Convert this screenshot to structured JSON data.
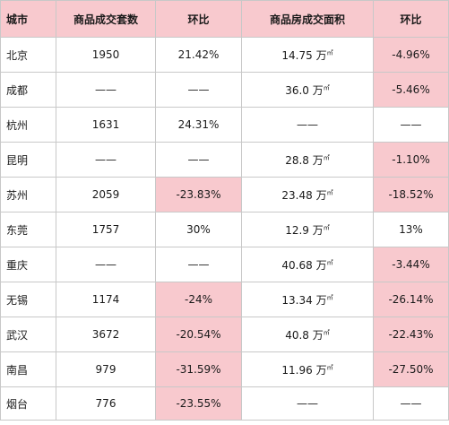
{
  "table": {
    "headers": [
      "城市",
      "商品成交套数",
      "环比",
      "商品房成交面积",
      "环比"
    ],
    "area_unit": "万㎡",
    "rows": [
      {
        "city": "北京",
        "units": "1950",
        "units_mom": "21.42%",
        "area": "14.75",
        "area_mom": "-4.96%",
        "units_mom_highlight": false,
        "area_mom_highlight": true
      },
      {
        "city": "成都",
        "units": "——",
        "units_mom": "——",
        "area": "36.0",
        "area_mom": "-5.46%",
        "units_mom_highlight": false,
        "area_mom_highlight": true
      },
      {
        "city": "杭州",
        "units": "1631",
        "units_mom": "24.31%",
        "area": "——",
        "area_mom": "——",
        "units_mom_highlight": false,
        "area_mom_highlight": false
      },
      {
        "city": "昆明",
        "units": "——",
        "units_mom": "——",
        "area": "28.8",
        "area_mom": "-1.10%",
        "units_mom_highlight": false,
        "area_mom_highlight": true
      },
      {
        "city": "苏州",
        "units": "2059",
        "units_mom": "-23.83%",
        "area": "23.48",
        "area_mom": "-18.52%",
        "units_mom_highlight": true,
        "area_mom_highlight": true
      },
      {
        "city": "东莞",
        "units": "1757",
        "units_mom": "30%",
        "area": "12.9",
        "area_mom": "13%",
        "units_mom_highlight": false,
        "area_mom_highlight": false
      },
      {
        "city": "重庆",
        "units": "——",
        "units_mom": "——",
        "area": "40.68",
        "area_mom": "-3.44%",
        "units_mom_highlight": false,
        "area_mom_highlight": true
      },
      {
        "city": "无锡",
        "units": "1174",
        "units_mom": "-24%",
        "area": "13.34",
        "area_mom": "-26.14%",
        "units_mom_highlight": true,
        "area_mom_highlight": true
      },
      {
        "city": "武汉",
        "units": "3672",
        "units_mom": "-20.54%",
        "area": "40.8",
        "area_mom": "-22.43%",
        "units_mom_highlight": true,
        "area_mom_highlight": true
      },
      {
        "city": "南昌",
        "units": "979",
        "units_mom": "-31.59%",
        "area": "11.96",
        "area_mom": "-27.50%",
        "units_mom_highlight": true,
        "area_mom_highlight": true
      },
      {
        "city": "烟台",
        "units": "776",
        "units_mom": "-23.55%",
        "area": "——",
        "area_mom": "——",
        "units_mom_highlight": true,
        "area_mom_highlight": false
      }
    ]
  },
  "colors": {
    "header_bg": "#f8c9ce",
    "highlight_bg": "#f8c9ce",
    "border": "#c8c8c8"
  }
}
